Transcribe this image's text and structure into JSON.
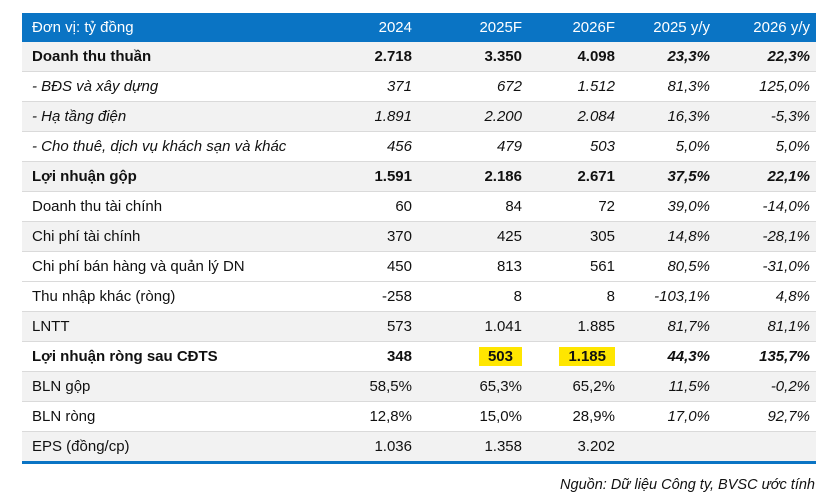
{
  "table": {
    "unit_label": "Đơn vị: tỷ đồng",
    "columns": [
      "2024",
      "2025F",
      "2026F",
      "2025 y/y",
      "2026 y/y"
    ],
    "rows": [
      {
        "label": "Doanh thu thuần",
        "style": "bold",
        "shaded": true,
        "values": [
          "2.718",
          "3.350",
          "4.098",
          "23,3%",
          "22,3%"
        ]
      },
      {
        "label": "- BĐS và xây dựng",
        "style": "italic",
        "shaded": false,
        "values": [
          "371",
          "672",
          "1.512",
          "81,3%",
          "125,0%"
        ]
      },
      {
        "label": "- Hạ tầng điện",
        "style": "italic",
        "shaded": true,
        "values": [
          "1.891",
          "2.200",
          "2.084",
          "16,3%",
          "-5,3%"
        ]
      },
      {
        "label": "- Cho thuê, dịch vụ khách sạn và khác",
        "style": "italic",
        "shaded": false,
        "values": [
          "456",
          "479",
          "503",
          "5,0%",
          "5,0%"
        ]
      },
      {
        "label": "Lợi nhuận gộp",
        "style": "bold",
        "shaded": true,
        "values": [
          "1.591",
          "2.186",
          "2.671",
          "37,5%",
          "22,1%"
        ]
      },
      {
        "label": "Doanh thu tài chính",
        "style": "normal",
        "shaded": false,
        "values": [
          "60",
          "84",
          "72",
          "39,0%",
          "-14,0%"
        ]
      },
      {
        "label": "Chi phí tài chính",
        "style": "normal",
        "shaded": true,
        "values": [
          "370",
          "425",
          "305",
          "14,8%",
          "-28,1%"
        ]
      },
      {
        "label": "Chi phí bán hàng và quản lý DN",
        "style": "normal",
        "shaded": false,
        "values": [
          "450",
          "813",
          "561",
          "80,5%",
          "-31,0%"
        ]
      },
      {
        "label": "Thu nhập khác (ròng)",
        "style": "normal",
        "shaded": false,
        "values": [
          "-258",
          "8",
          "8",
          "-103,1%",
          "4,8%"
        ]
      },
      {
        "label": "LNTT",
        "style": "normal",
        "shaded": true,
        "values": [
          "573",
          "1.041",
          "1.885",
          "81,7%",
          "81,1%"
        ]
      },
      {
        "label": "Lợi nhuận ròng sau CĐTS",
        "style": "bold",
        "shaded": false,
        "values": [
          "348",
          "503",
          "1.185",
          "44,3%",
          "135,7%"
        ],
        "highlight": [
          1,
          2
        ]
      },
      {
        "label": "BLN gộp",
        "style": "normal",
        "shaded": true,
        "values": [
          "58,5%",
          "65,3%",
          "65,2%",
          "11,5%",
          "-0,2%"
        ]
      },
      {
        "label": "BLN ròng",
        "style": "normal",
        "shaded": false,
        "values": [
          "12,8%",
          "15,0%",
          "28,9%",
          "17,0%",
          "92,7%"
        ]
      },
      {
        "label": "EPS (đồng/cp)",
        "style": "normal",
        "shaded": true,
        "values": [
          "1.036",
          "1.358",
          "3.202",
          "",
          ""
        ]
      }
    ]
  },
  "footer": {
    "source": "Nguồn: Dữ liệu Công ty, BVSC ước tính"
  },
  "colors": {
    "header_bg": "#0A74C4",
    "header_text": "#FFFFFF",
    "stripe_bg": "#F2F2F2",
    "row_border": "#DADADA",
    "highlight_bg": "#FFE600",
    "bottom_border": "#0A74C4",
    "text": "#111111"
  }
}
